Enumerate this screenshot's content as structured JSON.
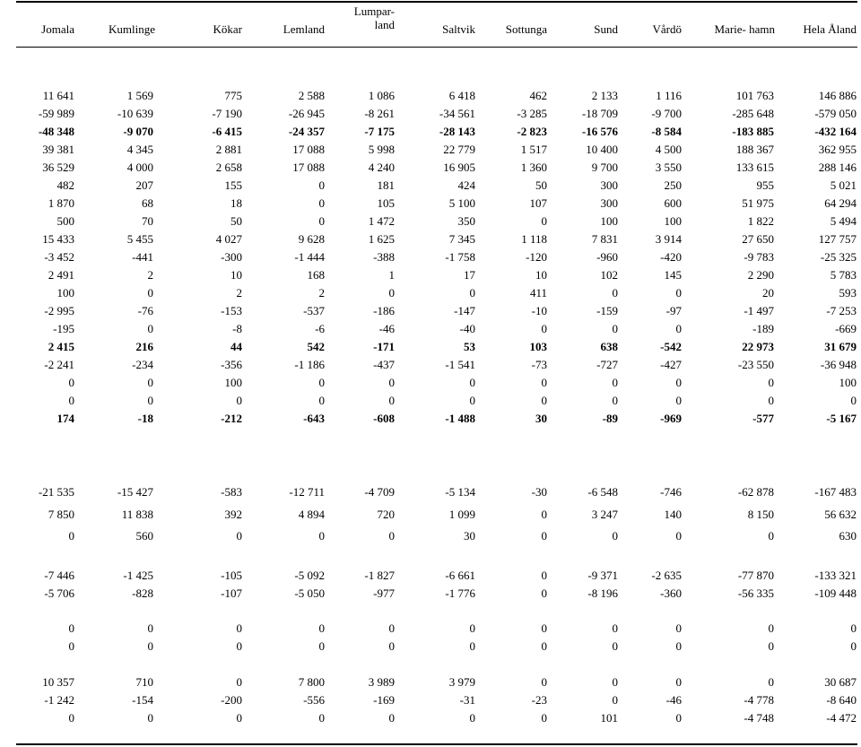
{
  "headers": [
    {
      "line1": "",
      "line2": "Jomala"
    },
    {
      "line1": "",
      "line2": "Kumlinge"
    },
    {
      "line1": "",
      "line2": "Kökar"
    },
    {
      "line1": "",
      "line2": "Lemland"
    },
    {
      "line1": "Lumpar-",
      "line2": "land"
    },
    {
      "line1": "",
      "line2": "Saltvik"
    },
    {
      "line1": "",
      "line2": "Sottunga"
    },
    {
      "line1": "",
      "line2": "Sund"
    },
    {
      "line1": "",
      "line2": "Vårdö"
    },
    {
      "line1": "",
      "line2": "Marie- hamn"
    },
    {
      "line1": "",
      "line2": "Hela Åland"
    }
  ],
  "rows": [
    {
      "bold": false,
      "cells": [
        "11 641",
        "1 569",
        "775",
        "2 588",
        "1 086",
        "6 418",
        "462",
        "2 133",
        "1 116",
        "101 763",
        "146 886"
      ]
    },
    {
      "bold": false,
      "cells": [
        "-59 989",
        "-10 639",
        "-7 190",
        "-26 945",
        "-8 261",
        "-34 561",
        "-3 285",
        "-18 709",
        "-9 700",
        "-285 648",
        "-579 050"
      ]
    },
    {
      "bold": true,
      "cells": [
        "-48 348",
        "-9 070",
        "-6 415",
        "-24 357",
        "-7 175",
        "-28 143",
        "-2 823",
        "-16 576",
        "-8 584",
        "-183 885",
        "-432 164"
      ]
    },
    {
      "bold": false,
      "cells": [
        "39 381",
        "4 345",
        "2 881",
        "17 088",
        "5 998",
        "22 779",
        "1 517",
        "10 400",
        "4 500",
        "188 367",
        "362 955"
      ]
    },
    {
      "bold": false,
      "cells": [
        "36 529",
        "4 000",
        "2 658",
        "17 088",
        "4 240",
        "16 905",
        "1 360",
        "9 700",
        "3 550",
        "133 615",
        "288 146"
      ]
    },
    {
      "bold": false,
      "cells": [
        "482",
        "207",
        "155",
        "0",
        "181",
        "424",
        "50",
        "300",
        "250",
        "955",
        "5 021"
      ]
    },
    {
      "bold": false,
      "cells": [
        "1 870",
        "68",
        "18",
        "0",
        "105",
        "5 100",
        "107",
        "300",
        "600",
        "51 975",
        "64 294"
      ]
    },
    {
      "bold": false,
      "cells": [
        "500",
        "70",
        "50",
        "0",
        "1 472",
        "350",
        "0",
        "100",
        "100",
        "1 822",
        "5 494"
      ]
    },
    {
      "bold": false,
      "cells": [
        "15 433",
        "5 455",
        "4 027",
        "9 628",
        "1 625",
        "7 345",
        "1 118",
        "7 831",
        "3 914",
        "27 650",
        "127 757"
      ]
    },
    {
      "bold": false,
      "cells": [
        "-3 452",
        "-441",
        "-300",
        "-1 444",
        "-388",
        "-1 758",
        "-120",
        "-960",
        "-420",
        "-9 783",
        "-25 325"
      ]
    },
    {
      "bold": false,
      "cells": [
        "2 491",
        "2",
        "10",
        "168",
        "1",
        "17",
        "10",
        "102",
        "145",
        "2 290",
        "5 783"
      ]
    },
    {
      "bold": false,
      "cells": [
        "100",
        "0",
        "2",
        "2",
        "0",
        "0",
        "411",
        "0",
        "0",
        "20",
        "593"
      ]
    },
    {
      "bold": false,
      "cells": [
        "-2 995",
        "-76",
        "-153",
        "-537",
        "-186",
        "-147",
        "-10",
        "-159",
        "-97",
        "-1 497",
        "-7 253"
      ]
    },
    {
      "bold": false,
      "cells": [
        "-195",
        "0",
        "-8",
        "-6",
        "-46",
        "-40",
        "0",
        "0",
        "0",
        "-189",
        "-669"
      ]
    },
    {
      "bold": true,
      "cells": [
        "2 415",
        "216",
        "44",
        "542",
        "-171",
        "53",
        "103",
        "638",
        "-542",
        "22 973",
        "31 679"
      ]
    },
    {
      "bold": false,
      "cells": [
        "-2 241",
        "-234",
        "-356",
        "-1 186",
        "-437",
        "-1 541",
        "-73",
        "-727",
        "-427",
        "-23 550",
        "-36 948"
      ]
    },
    {
      "bold": false,
      "cells": [
        "0",
        "0",
        "100",
        "0",
        "0",
        "0",
        "0",
        "0",
        "0",
        "0",
        "100"
      ]
    },
    {
      "bold": false,
      "cells": [
        "0",
        "0",
        "0",
        "0",
        "0",
        "0",
        "0",
        "0",
        "0",
        "0",
        "0"
      ]
    },
    {
      "bold": true,
      "cells": [
        "174",
        "-18",
        "-212",
        "-643",
        "-608",
        "-1 488",
        "30",
        "-89",
        "-969",
        "-577",
        "-5 167"
      ]
    },
    {
      "bold": false,
      "cells": [
        "-21 535",
        "-15 427",
        "-583",
        "-12 711",
        "-4 709",
        "-5 134",
        "-30",
        "-6 548",
        "-746",
        "-62 878",
        "-167 483"
      ]
    },
    {
      "bold": false,
      "cells": [
        "7 850",
        "11 838",
        "392",
        "4 894",
        "720",
        "1 099",
        "0",
        "3 247",
        "140",
        "8 150",
        "56 632"
      ]
    },
    {
      "bold": false,
      "cells": [
        "0",
        "560",
        "0",
        "0",
        "0",
        "30",
        "0",
        "0",
        "0",
        "0",
        "630"
      ]
    },
    {
      "bold": false,
      "cells": [
        "-7 446",
        "-1 425",
        "-105",
        "-5 092",
        "-1 827",
        "-6 661",
        "0",
        "-9 371",
        "-2 635",
        "-77 870",
        "-133 321"
      ]
    },
    {
      "bold": false,
      "cells": [
        "-5 706",
        "-828",
        "-107",
        "-5 050",
        "-977",
        "-1 776",
        "0",
        "-8 196",
        "-360",
        "-56 335",
        "-109 448"
      ]
    },
    {
      "bold": false,
      "cells": [
        "0",
        "0",
        "0",
        "0",
        "0",
        "0",
        "0",
        "0",
        "0",
        "0",
        "0"
      ]
    },
    {
      "bold": false,
      "cells": [
        "0",
        "0",
        "0",
        "0",
        "0",
        "0",
        "0",
        "0",
        "0",
        "0",
        "0"
      ]
    },
    {
      "bold": false,
      "cells": [
        "10 357",
        "710",
        "0",
        "7 800",
        "3 989",
        "3 979",
        "0",
        "0",
        "0",
        "0",
        "30 687"
      ]
    },
    {
      "bold": false,
      "cells": [
        "-1 242",
        "-154",
        "-200",
        "-556",
        "-169",
        "-31",
        "-23",
        "0",
        "-46",
        "-4 778",
        "-8 640"
      ]
    },
    {
      "bold": false,
      "cells": [
        "0",
        "0",
        "0",
        "0",
        "0",
        "0",
        "0",
        "101",
        "0",
        "-4 748",
        "-4 472"
      ]
    }
  ]
}
